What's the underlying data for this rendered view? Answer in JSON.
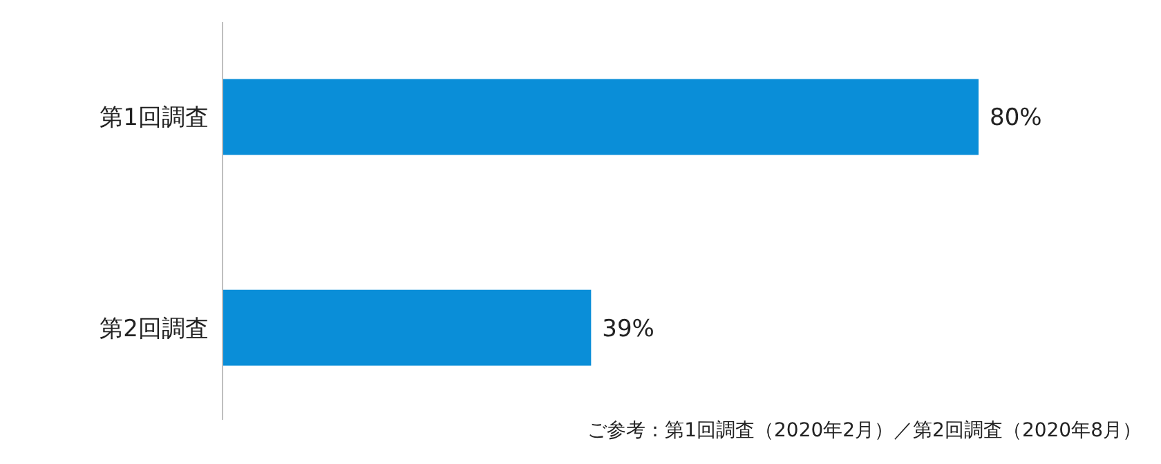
{
  "chart_data": {
    "type": "bar",
    "orientation": "horizontal",
    "categories": [
      "第1回調査",
      "第2回調査"
    ],
    "values": [
      80,
      39
    ],
    "value_labels": [
      "80%",
      "39%"
    ],
    "color": "#0a8ed8",
    "annotations": [
      "ご参考：第1回調査（2020年2月）／第2回調査（2020年8月）"
    ]
  }
}
